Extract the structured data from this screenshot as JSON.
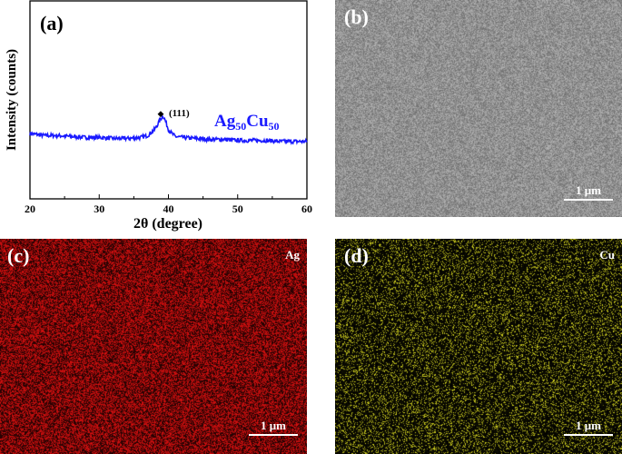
{
  "chart_data": {
    "type": "line",
    "panel_label": "(a)",
    "xlabel": "2θ (degree)",
    "ylabel": "Intensity (counts)",
    "xlim": [
      20,
      60
    ],
    "ylim": [
      0,
      1
    ],
    "xticks": [
      20,
      30,
      40,
      50,
      60
    ],
    "grid": false,
    "series": [
      {
        "name": "Ag50Cu50",
        "color": "#1a1aff",
        "x": [
          20,
          22,
          24,
          26,
          28,
          30,
          32,
          34,
          36,
          37,
          38,
          38.5,
          39,
          39.2,
          39.5,
          40,
          40.5,
          41,
          42,
          44,
          46,
          48,
          50,
          52,
          54,
          56,
          58,
          60
        ],
        "y": [
          0.33,
          0.32,
          0.32,
          0.315,
          0.31,
          0.31,
          0.305,
          0.305,
          0.31,
          0.32,
          0.35,
          0.38,
          0.41,
          0.42,
          0.4,
          0.35,
          0.33,
          0.315,
          0.31,
          0.305,
          0.3,
          0.3,
          0.295,
          0.295,
          0.295,
          0.29,
          0.29,
          0.29
        ]
      }
    ],
    "legend_text": {
      "main1": "Ag",
      "sub1": "50",
      "main2": "Cu",
      "sub2": "50"
    },
    "annotation": {
      "marker": "◆",
      "text": "(111)",
      "x": 39.3
    }
  },
  "panels": {
    "b": {
      "label": "(b)",
      "scale": "1 μm",
      "type": "SEM",
      "color": "#888888"
    },
    "c": {
      "label": "(c)",
      "element": "Ag",
      "scale": "1 μm",
      "color": "#e01010"
    },
    "d": {
      "label": "(d)",
      "element": "Cu",
      "scale": "1 μm",
      "color": "#d8d820"
    }
  }
}
